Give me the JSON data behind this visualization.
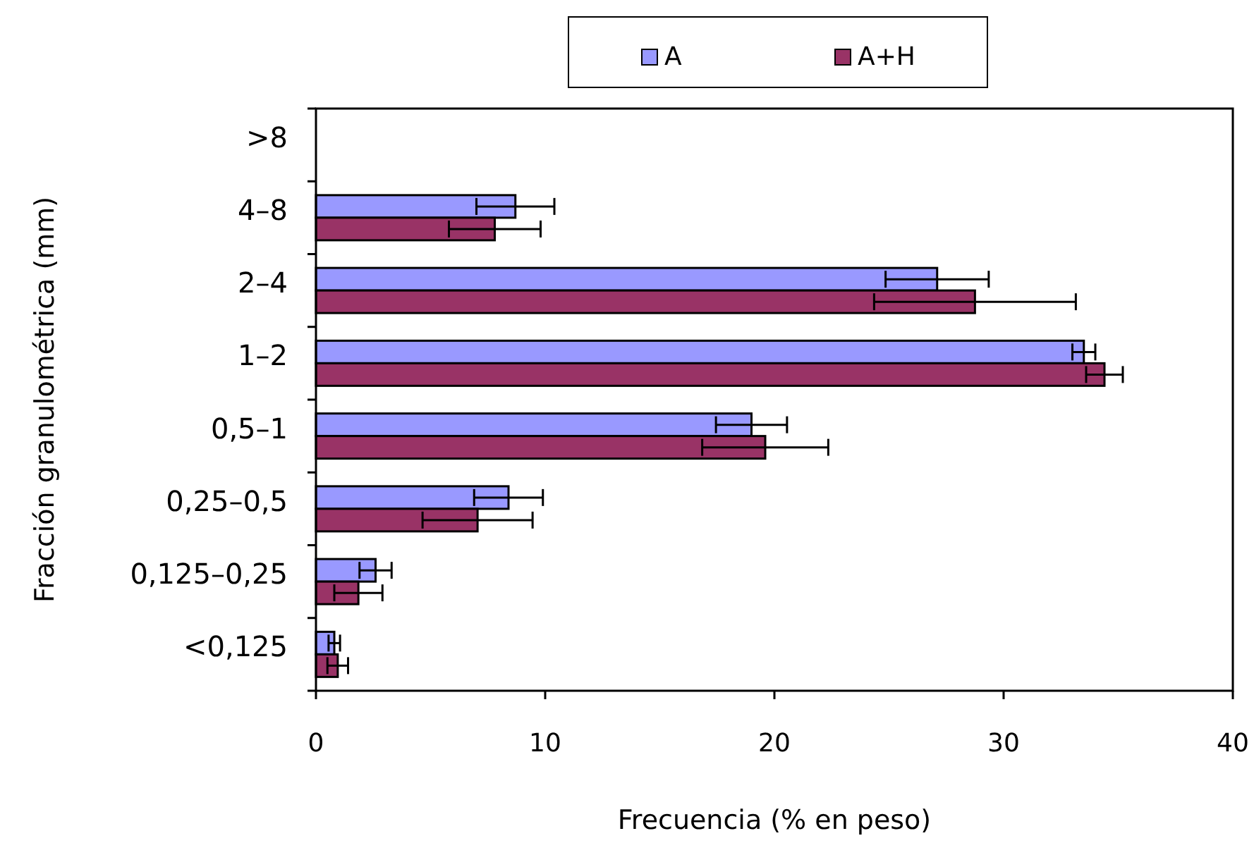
{
  "chart_data": {
    "type": "bar",
    "orientation": "horizontal",
    "xlabel": "Frecuencia (% en peso)",
    "ylabel": "Fracción granulométrica (mm)",
    "categories": [
      ">8",
      "4–8",
      "2–4",
      "1–2",
      "0,5–1",
      "0,25–0,5",
      "0,125–0,25",
      "<0,125"
    ],
    "series": [
      {
        "name": "A",
        "color": "#9999ff",
        "values": [
          0,
          8.7,
          27.1,
          33.5,
          19.0,
          8.4,
          2.6,
          0.8
        ],
        "errors": [
          null,
          1.7,
          2.25,
          0.5,
          1.55,
          1.5,
          0.7,
          0.25
        ]
      },
      {
        "name": "A+H",
        "color": "#993366",
        "values": [
          0,
          7.8,
          28.75,
          34.4,
          19.6,
          7.05,
          1.85,
          0.95
        ],
        "errors": [
          null,
          2.0,
          4.4,
          0.8,
          2.75,
          2.4,
          1.05,
          0.45
        ]
      }
    ],
    "xlim": [
      0,
      40
    ],
    "xticks": [
      0,
      10,
      20,
      30,
      40
    ],
    "grid": false,
    "legend": "top"
  }
}
